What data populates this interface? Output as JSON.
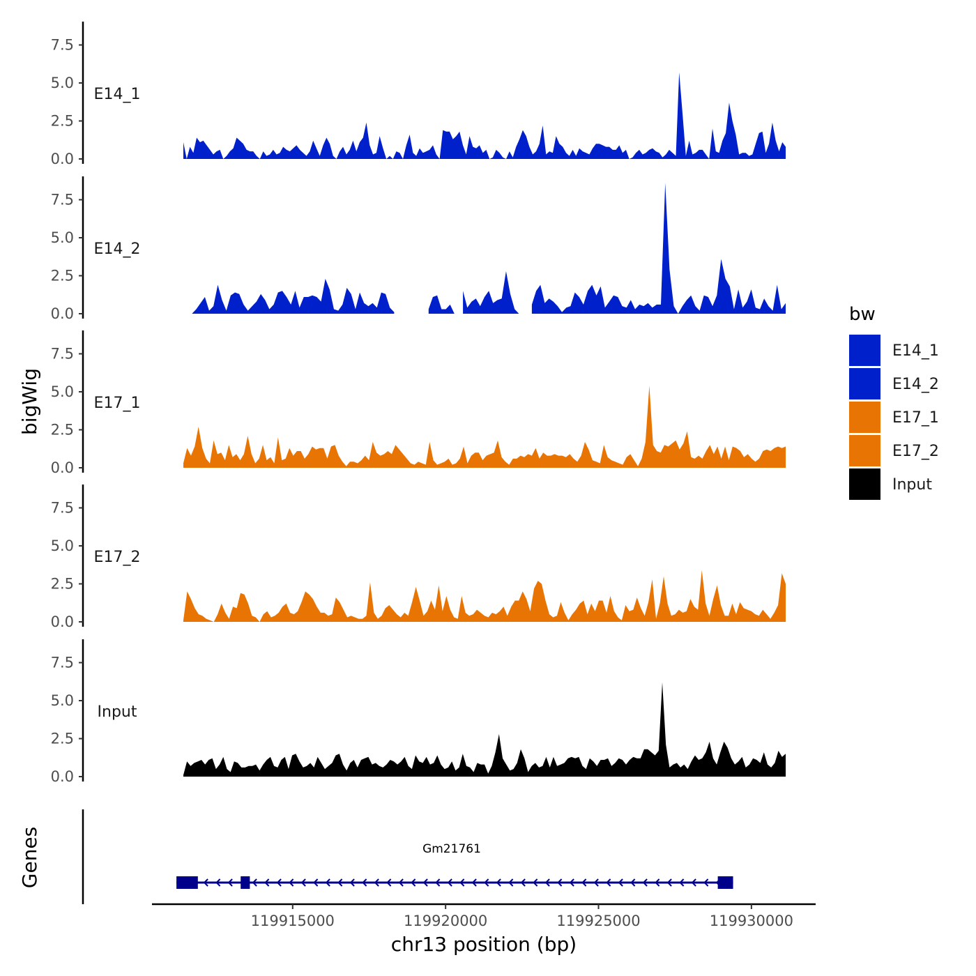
{
  "chart_data": {
    "type": "area",
    "chromosome": "chr13",
    "ylabel": "bigWig",
    "xlabel": "chr13 position (bp)",
    "genes_label": "Genes",
    "ylim": [
      0,
      9
    ],
    "xlim": [
      119910400,
      119932100
    ],
    "region": [
      119911200,
      119931000
    ],
    "y_ticks": [
      0.0,
      2.5,
      5.0,
      7.5
    ],
    "y_tick_labels": [
      "0.0",
      "2.5",
      "5.0",
      "7.5"
    ],
    "x_ticks": [
      119915000,
      119920000,
      119925000,
      119930000
    ],
    "x_tick_labels": [
      "119915000",
      "119920000",
      "119925000",
      "119930000"
    ],
    "legend": {
      "title": "bw",
      "entries": [
        {
          "label": "E14_1",
          "color": "#0020CC"
        },
        {
          "label": "E14_2",
          "color": "#0020CC"
        },
        {
          "label": "E17_1",
          "color": "#E87503"
        },
        {
          "label": "E17_2",
          "color": "#E87503"
        },
        {
          "label": "Input",
          "color": "#000000"
        }
      ]
    },
    "series": [
      {
        "name": "E14_1",
        "color": "#0020CC",
        "values": [
          1.1,
          0,
          0.8,
          0.4,
          1.4,
          1.1,
          1.2,
          0.9,
          0.6,
          0.3,
          0.5,
          0.6,
          0,
          0.2,
          0.5,
          0.7,
          1.4,
          1.2,
          1,
          0.6,
          0.5,
          0.5,
          0.2,
          0,
          0.5,
          0.2,
          0.3,
          0.6,
          0.3,
          0.4,
          0.8,
          0.6,
          0.5,
          0.7,
          0.9,
          0.6,
          0.4,
          0.2,
          0.5,
          1.2,
          0.7,
          0.2,
          0.9,
          1.4,
          1,
          0.2,
          0,
          0.5,
          0.8,
          0.3,
          0.6,
          1.2,
          0.5,
          1.1,
          1.4,
          2.4,
          0.9,
          0.3,
          0.4,
          1.5,
          0.7,
          0,
          0.2,
          0,
          0.5,
          0.4,
          0,
          0.9,
          1.6,
          0.4,
          0.2,
          0.7,
          0.4,
          0.5,
          0.6,
          0.9,
          0.3,
          0,
          1.9,
          1.8,
          1.8,
          1.3,
          1.5,
          1.8,
          0.9,
          0.3,
          1.5,
          0.8,
          0.7,
          0.9,
          0.4,
          0.6,
          0,
          0.1,
          0.6,
          0.4,
          0.1,
          0,
          0.5,
          0.1,
          0.8,
          1.3,
          1.9,
          1.5,
          0.8,
          0.3,
          0.5,
          1,
          2.2,
          0.3,
          0.5,
          0.4,
          1.5,
          1,
          0.8,
          0.4,
          0.2,
          0.6,
          0.2,
          0.7,
          0.5,
          0.4,
          0.3,
          0.7,
          1,
          1,
          0.9,
          0.8,
          0.8,
          0.6,
          0.6,
          0.9,
          0.4,
          0.6,
          0,
          0.1,
          0.4,
          0.6,
          0.3,
          0.4,
          0.6,
          0.7,
          0.5,
          0.4,
          0.1,
          0.3,
          0.6,
          0.4,
          0.2,
          5.7,
          3,
          0.2,
          1.2,
          0.3,
          0.4,
          0.6,
          0.6,
          0.3,
          0,
          2,
          0.5,
          0.4,
          1.2,
          1.7,
          3.7,
          2.5,
          1.6,
          0.3,
          0.4,
          0.4,
          0.2,
          0.3,
          1,
          1.7,
          1.8,
          0.4,
          1,
          2.4,
          1.2,
          0.5,
          1.1,
          0.8
        ]
      },
      {
        "name": "E14_2",
        "color": "#0020CC",
        "values": [
          0.1,
          null,
          0,
          0.3,
          0.7,
          1.1,
          0.2,
          0.5,
          1.9,
          0.9,
          0.2,
          1.2,
          1.4,
          1.3,
          0.6,
          0.2,
          0.5,
          0.8,
          1.3,
          0.9,
          0.3,
          0.6,
          1.4,
          1.5,
          1.1,
          0.6,
          1.5,
          0.4,
          1.1,
          1.1,
          1.2,
          1.1,
          0.8,
          2.3,
          1.6,
          0.3,
          0.2,
          0.6,
          1.7,
          1.3,
          0.3,
          1.4,
          0.7,
          0.5,
          0.7,
          0.4,
          1.4,
          1.3,
          0.4,
          0.1,
          null,
          null,
          null,
          null,
          null,
          null,
          null,
          0.3,
          1.1,
          1.2,
          0.3,
          0.3,
          0.6,
          0,
          null,
          1.5,
          0.4,
          0.8,
          1,
          0.5,
          1.1,
          1.5,
          0.7,
          0.9,
          1,
          2.8,
          1.3,
          0.3,
          0,
          null,
          null,
          0.6,
          1.5,
          1.9,
          0.7,
          1,
          0.8,
          0.5,
          0.1,
          0.4,
          0.5,
          1.4,
          1.1,
          0.6,
          1.5,
          1.9,
          1.2,
          1.8,
          0.4,
          0.8,
          1.2,
          1.1,
          0.5,
          0.4,
          0.9,
          0.3,
          0.6,
          0.5,
          0.7,
          0.4,
          0.6,
          0.6,
          8.6,
          2.9,
          0.5,
          0,
          0.5,
          0.9,
          1.2,
          0.5,
          0.2,
          1.2,
          1.1,
          0.5,
          1.2,
          3.6,
          2.3,
          1.8,
          0.3,
          1.6,
          0.4,
          0.8,
          1.6,
          0.4,
          0.3,
          1,
          0.5,
          0.2,
          1.9,
          0.3,
          0.7
        ]
      },
      {
        "name": "E17_1",
        "color": "#E87503",
        "values": [
          0.3,
          1.3,
          0.8,
          1.4,
          2.7,
          1.3,
          0.6,
          0.3,
          1.8,
          0.9,
          1,
          0.5,
          1.5,
          0.7,
          0.9,
          0.5,
          0.9,
          2.1,
          0.9,
          0.3,
          0.6,
          1.5,
          0.5,
          0.7,
          0.3,
          2,
          0.5,
          0.6,
          1.3,
          0.8,
          1.1,
          1.1,
          0.6,
          0.9,
          1.4,
          1.2,
          1.3,
          1.3,
          0.6,
          1.4,
          1.5,
          0.8,
          0.4,
          0.1,
          0.4,
          0.4,
          0.3,
          0.5,
          0.8,
          0.5,
          1.7,
          1,
          0.8,
          0.9,
          1.1,
          0.9,
          1.5,
          1.2,
          0.9,
          0.6,
          0.3,
          0.2,
          0.4,
          0.3,
          0.2,
          1.7,
          0.5,
          0.2,
          0.3,
          0.4,
          0.6,
          0.2,
          0.3,
          0.6,
          1.4,
          0.3,
          0.8,
          1,
          1,
          0.5,
          0.8,
          0.9,
          1,
          1.8,
          0.7,
          0.4,
          0.2,
          0.6,
          0.6,
          0.8,
          0.7,
          0.9,
          0.8,
          1.3,
          0.6,
          1,
          0.8,
          0.8,
          0.9,
          0.8,
          0.8,
          0.7,
          0.9,
          0.6,
          0.4,
          0.8,
          1.7,
          1.2,
          0.5,
          0.4,
          0.3,
          1.5,
          0.7,
          0.5,
          0.4,
          0.3,
          0.2,
          0.7,
          0.9,
          0.5,
          0.1,
          0.6,
          1.7,
          5.4,
          1.5,
          1.1,
          1,
          1.5,
          1.4,
          1.6,
          1.8,
          1.2,
          1.6,
          2.4,
          0.7,
          0.6,
          0.8,
          0.6,
          1.1,
          1.5,
          0.9,
          1.4,
          0.6,
          1.4,
          0.5,
          1.4,
          1.3,
          1.1,
          0.7,
          0.9,
          0.6,
          0.4,
          0.6,
          1.1,
          1.2,
          1.1,
          1.3,
          1.4,
          1.3,
          1.4
        ]
      },
      {
        "name": "E17_2",
        "color": "#E87503",
        "values": [
          0.1,
          2,
          1.5,
          0.9,
          0.5,
          0.4,
          0.2,
          0.1,
          0,
          0.5,
          1.2,
          0.6,
          0.2,
          1,
          0.9,
          1.9,
          1.8,
          1.2,
          0.4,
          0.3,
          0,
          0.5,
          0.7,
          0.3,
          0.4,
          0.6,
          1,
          1.2,
          0.6,
          0.5,
          0.7,
          1.3,
          2,
          1.8,
          1.5,
          1,
          0.6,
          0.6,
          0.4,
          0.5,
          1.6,
          1.3,
          0.8,
          0.3,
          0.4,
          0.3,
          0.2,
          0.2,
          0.4,
          2.6,
          0.6,
          0.2,
          0.4,
          0.9,
          1.1,
          0.8,
          0.5,
          0.3,
          0.6,
          0.4,
          1.3,
          2.3,
          1.4,
          0.4,
          0.7,
          1.4,
          0.8,
          2.4,
          0.7,
          1.7,
          0.8,
          0.3,
          0.2,
          1.7,
          0.6,
          0.4,
          0.5,
          0.8,
          0.6,
          0.4,
          0.3,
          0.6,
          0.5,
          0.7,
          1,
          0.4,
          1,
          1.4,
          1.4,
          2,
          1.5,
          0.7,
          2.2,
          2.7,
          2.5,
          1.4,
          0.5,
          0.3,
          0.4,
          1.3,
          0.6,
          0.1,
          0.5,
          0.8,
          1.2,
          1.4,
          0.5,
          1.2,
          0.7,
          1.4,
          1.4,
          0.6,
          1.7,
          0.7,
          0.3,
          0.1,
          1.1,
          0.7,
          0.8,
          1.6,
          0.9,
          0.4,
          1.3,
          2.8,
          0.2,
          1.2,
          3,
          1.2,
          0.4,
          0.5,
          0.8,
          0.6,
          0.7,
          1.5,
          1,
          0.8,
          3.4,
          1.2,
          0.4,
          1.5,
          2.4,
          1.1,
          0.4,
          0.4,
          1.2,
          0.5,
          1.3,
          0.9,
          0.8,
          0.7,
          0.5,
          0.4,
          0.8,
          0.5,
          0.2,
          0.6,
          1.1,
          3.2,
          2.5
        ]
      },
      {
        "name": "Input",
        "color": "#000000",
        "values": [
          0.1,
          1,
          0.7,
          0.9,
          1,
          1.1,
          0.8,
          1.1,
          1.2,
          0.5,
          0.8,
          1.3,
          0.5,
          0.3,
          1,
          0.9,
          0.6,
          0.6,
          0.7,
          0.7,
          0.8,
          0.4,
          0.8,
          1.1,
          1.3,
          0.7,
          0.6,
          1.1,
          1.3,
          0.5,
          1.4,
          1.5,
          1,
          0.6,
          0.7,
          0.9,
          0.6,
          1.3,
          0.9,
          0.5,
          0.7,
          0.9,
          1.4,
          1.5,
          0.8,
          0.4,
          0.9,
          1.1,
          0.6,
          1.1,
          1.2,
          1.3,
          0.8,
          0.9,
          0.7,
          0.6,
          0.8,
          1.1,
          1,
          0.8,
          1,
          1.3,
          0.7,
          0.5,
          1.4,
          1,
          0.9,
          1.3,
          0.8,
          0.9,
          1.4,
          0.8,
          0.5,
          0.6,
          1,
          0.4,
          0.6,
          1.5,
          0.7,
          0.6,
          0.3,
          0.9,
          0.8,
          0.8,
          0.2,
          0.7,
          1.6,
          2.8,
          1.2,
          0.8,
          0.4,
          0.5,
          0.9,
          1.8,
          1.2,
          0.3,
          0.7,
          0.9,
          0.6,
          0.7,
          1.3,
          0.6,
          1.3,
          0.7,
          0.8,
          0.9,
          1.2,
          1.3,
          1.2,
          1.3,
          0.7,
          0.5,
          1.2,
          1,
          0.7,
          1.1,
          1.1,
          1.2,
          0.7,
          0.9,
          1.2,
          1.1,
          0.8,
          1.1,
          1.3,
          1.2,
          1.2,
          1.8,
          1.8,
          1.6,
          1.4,
          1.7,
          6.2,
          2.1,
          0.6,
          0.8,
          0.9,
          0.6,
          0.8,
          0.5,
          1,
          1.4,
          1.1,
          1.2,
          1.6,
          2.3,
          1.2,
          0.8,
          1.6,
          2.3,
          1.9,
          1.2,
          0.8,
          1,
          1.3,
          0.6,
          0.8,
          1.2,
          1.1,
          0.9,
          1.6,
          0.8,
          0.6,
          0.9,
          1.7,
          1.3,
          1.5
        ]
      }
    ],
    "gene": {
      "name": "Gm21761",
      "start": 119911200,
      "end": 119929400,
      "strand": "-",
      "color": "#00008B",
      "exons": [
        [
          119911200,
          119911900
        ],
        [
          119913300,
          119913600
        ],
        [
          119928900,
          119929400
        ]
      ]
    }
  }
}
